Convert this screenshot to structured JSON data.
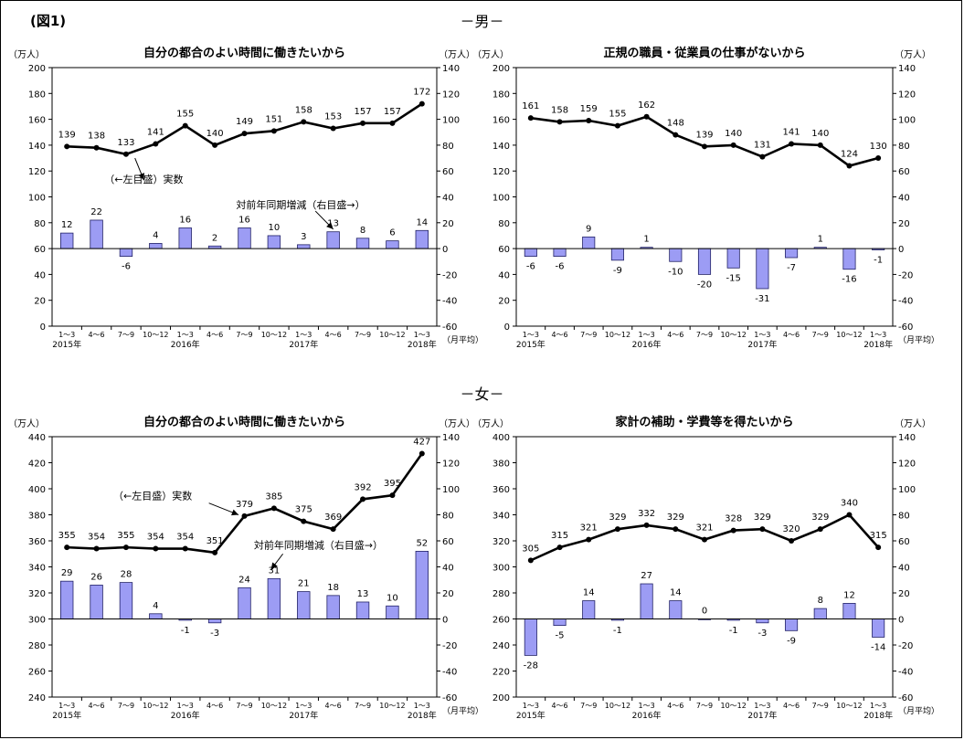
{
  "figure_label": "(図1)",
  "section_men": "－男－",
  "section_women": "－女－",
  "chart_data": [
    {
      "type": "bar+line",
      "title": "自分の都合のよい時間に働きたいから",
      "left_unit": "（万人）",
      "right_unit": "（万人）",
      "right_unit_bottom": "（月平均）",
      "left_ylim": [
        0,
        200
      ],
      "left_ticks": [
        0,
        20,
        40,
        60,
        80,
        100,
        120,
        140,
        160,
        180,
        200
      ],
      "right_ylim": [
        -60,
        140
      ],
      "right_ticks": [
        -60,
        -40,
        -20,
        0,
        20,
        40,
        60,
        80,
        100,
        120,
        140
      ],
      "categories": [
        "1～3",
        "4～6",
        "7～9",
        "10～12",
        "1～3",
        "4～6",
        "7～9",
        "10～12",
        "1～3",
        "4～6",
        "7～9",
        "10～12",
        "1～3"
      ],
      "years": [
        {
          "label": "2015年",
          "index": 0
        },
        {
          "label": "2016年",
          "index": 4
        },
        {
          "label": "2017年",
          "index": 8
        },
        {
          "label": "2018年",
          "index": 12
        }
      ],
      "line_series": {
        "axis": "left",
        "values": [
          139,
          138,
          133,
          141,
          155,
          140,
          149,
          151,
          158,
          153,
          157,
          157,
          172
        ]
      },
      "bar_series": {
        "axis": "right",
        "values": [
          12,
          22,
          -6,
          4,
          16,
          2,
          16,
          10,
          3,
          13,
          8,
          6,
          14
        ]
      },
      "annotations": [
        {
          "text": "（←左目盛）実数",
          "x": 2.6,
          "y": 111,
          "ax": 2.3,
          "ay": 130,
          "tx": 2.6,
          "ty": 113
        },
        {
          "text": "対前年同期増減（右目盛→）",
          "x": 7.9,
          "y": 91,
          "ax": 8.4,
          "ay": 89,
          "tx": 9.0,
          "ty": 75
        }
      ]
    },
    {
      "type": "bar+line",
      "title": "正規の職員・従業員の仕事がないから",
      "left_unit": "（万人）",
      "right_unit": "（万人）",
      "right_unit_bottom": "（月平均）",
      "left_ylim": [
        0,
        200
      ],
      "left_ticks": [
        0,
        20,
        40,
        60,
        80,
        100,
        120,
        140,
        160,
        180,
        200
      ],
      "right_ylim": [
        -60,
        140
      ],
      "right_ticks": [
        -60,
        -40,
        -20,
        0,
        20,
        40,
        60,
        80,
        100,
        120,
        140
      ],
      "categories": [
        "1～3",
        "4～6",
        "7～9",
        "10～12",
        "1～3",
        "4～6",
        "7～9",
        "10～12",
        "1～3",
        "4～6",
        "7～9",
        "10～12",
        "1～3"
      ],
      "years": [
        {
          "label": "2015年",
          "index": 0
        },
        {
          "label": "2016年",
          "index": 4
        },
        {
          "label": "2017年",
          "index": 8
        },
        {
          "label": "2018年",
          "index": 12
        }
      ],
      "line_series": {
        "axis": "left",
        "values": [
          161,
          158,
          159,
          155,
          162,
          148,
          139,
          140,
          131,
          141,
          140,
          124,
          130
        ]
      },
      "bar_series": {
        "axis": "right",
        "values": [
          -6,
          -6,
          9,
          -9,
          1,
          -10,
          -20,
          -15,
          -31,
          -7,
          1,
          -16,
          -1
        ]
      },
      "annotations": []
    },
    {
      "type": "bar+line",
      "title": "自分の都合のよい時間に働きたいから",
      "left_unit": "（万人）",
      "right_unit": "（万人）",
      "right_unit_bottom": "（月平均）",
      "left_ylim": [
        240,
        440
      ],
      "left_ticks": [
        240,
        260,
        280,
        300,
        320,
        340,
        360,
        380,
        400,
        420,
        440
      ],
      "right_ylim": [
        -60,
        140
      ],
      "right_ticks": [
        -60,
        -40,
        -20,
        0,
        20,
        40,
        60,
        80,
        100,
        120,
        140
      ],
      "categories": [
        "1～3",
        "4～6",
        "7～9",
        "10～12",
        "1～3",
        "4～6",
        "7～9",
        "10～12",
        "1～3",
        "4～6",
        "7～9",
        "10～12",
        "1～3"
      ],
      "years": [
        {
          "label": "2015年",
          "index": 0
        },
        {
          "label": "2016年",
          "index": 4
        },
        {
          "label": "2017年",
          "index": 8
        },
        {
          "label": "2018年",
          "index": 12
        }
      ],
      "line_series": {
        "axis": "left",
        "values": [
          355,
          354,
          355,
          354,
          354,
          351,
          379,
          385,
          375,
          369,
          392,
          395,
          427
        ]
      },
      "bar_series": {
        "axis": "right",
        "values": [
          29,
          26,
          28,
          4,
          -1,
          -3,
          24,
          31,
          21,
          18,
          13,
          10,
          52
        ]
      },
      "annotations": [
        {
          "text": "（←左目盛）実数",
          "x": 2.9,
          "y": 392,
          "ax": 4.8,
          "ay": 389,
          "tx": 5.8,
          "ty": 380
        },
        {
          "text": "対前年同期増減（右目盛→）",
          "x": 8.5,
          "y": 354,
          "ax": 7.3,
          "ay": 350,
          "tx": 6.9,
          "ty": 338
        }
      ]
    },
    {
      "type": "bar+line",
      "title": "家計の補助・学費等を得たいから",
      "left_unit": "（万人）",
      "right_unit": "（万人）",
      "right_unit_bottom": "（月平均）",
      "left_ylim": [
        200,
        400
      ],
      "left_ticks": [
        200,
        220,
        240,
        260,
        280,
        300,
        320,
        340,
        360,
        380,
        400
      ],
      "right_ylim": [
        -60,
        140
      ],
      "right_ticks": [
        -60,
        -40,
        -20,
        0,
        20,
        40,
        60,
        80,
        100,
        120,
        140
      ],
      "categories": [
        "1～3",
        "4～6",
        "7～9",
        "10～12",
        "1～3",
        "4～6",
        "7～9",
        "10～12",
        "1～3",
        "4～6",
        "7～9",
        "10～12",
        "1～3"
      ],
      "years": [
        {
          "label": "2015年",
          "index": 0
        },
        {
          "label": "2016年",
          "index": 4
        },
        {
          "label": "2017年",
          "index": 8
        },
        {
          "label": "2018年",
          "index": 12
        }
      ],
      "line_series": {
        "axis": "left",
        "values": [
          305,
          315,
          321,
          329,
          332,
          329,
          321,
          328,
          329,
          320,
          329,
          340,
          315
        ]
      },
      "bar_series": {
        "axis": "right",
        "values": [
          -28,
          -5,
          14,
          -1,
          27,
          14,
          0,
          -1,
          -3,
          -9,
          8,
          12,
          -14
        ]
      },
      "annotations": []
    }
  ]
}
